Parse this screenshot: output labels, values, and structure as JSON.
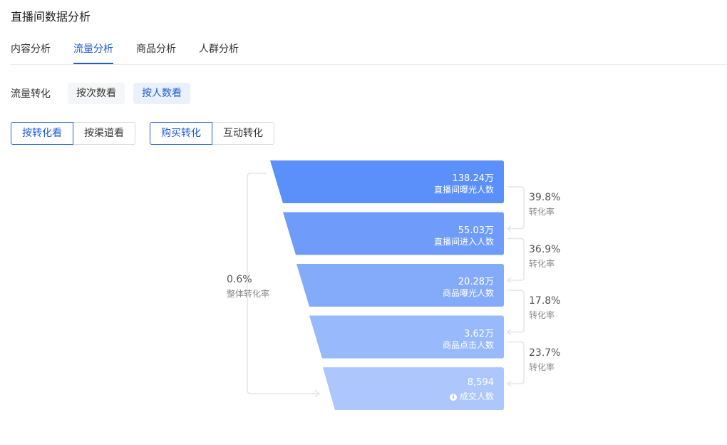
{
  "page": {
    "title": "直播间数据分析"
  },
  "tabs": [
    {
      "label": "内容分析",
      "active": false
    },
    {
      "label": "流量分析",
      "active": true
    },
    {
      "label": "商品分析",
      "active": false
    },
    {
      "label": "人群分析",
      "active": false
    }
  ],
  "section": {
    "label": "流量转化",
    "options": [
      {
        "label": "按次数看",
        "active": false
      },
      {
        "label": "按人数看",
        "active": true
      }
    ]
  },
  "view_toggle": [
    {
      "label": "按转化看",
      "active": true
    },
    {
      "label": "按渠道看",
      "active": false
    }
  ],
  "conversion_toggle": [
    {
      "label": "购买转化",
      "active": true
    },
    {
      "label": "互动转化",
      "active": false
    }
  ],
  "funnel": {
    "stages": [
      {
        "value": "138.24万",
        "label": "直播间曝光人数",
        "color": "#5b8ff9",
        "info": false
      },
      {
        "value": "55.03万",
        "label": "直播间进入人数",
        "color": "#6f9cfa",
        "info": false
      },
      {
        "value": "20.28万",
        "label": "商品曝光人数",
        "color": "#84abfa",
        "info": false
      },
      {
        "value": "3.62万",
        "label": "商品点击人数",
        "color": "#98b9fb",
        "info": false
      },
      {
        "value": "8,594",
        "label": "成交人数",
        "color": "#adc7fc",
        "info": true
      }
    ],
    "rates": [
      {
        "value": "39.8%",
        "label": "转化率"
      },
      {
        "value": "36.9%",
        "label": "转化率"
      },
      {
        "value": "17.8%",
        "label": "转化率"
      },
      {
        "value": "23.7%",
        "label": "转化率"
      }
    ],
    "overall": {
      "value": "0.6%",
      "label": "整体转化率"
    },
    "connector_color": "#e4e6ea"
  }
}
